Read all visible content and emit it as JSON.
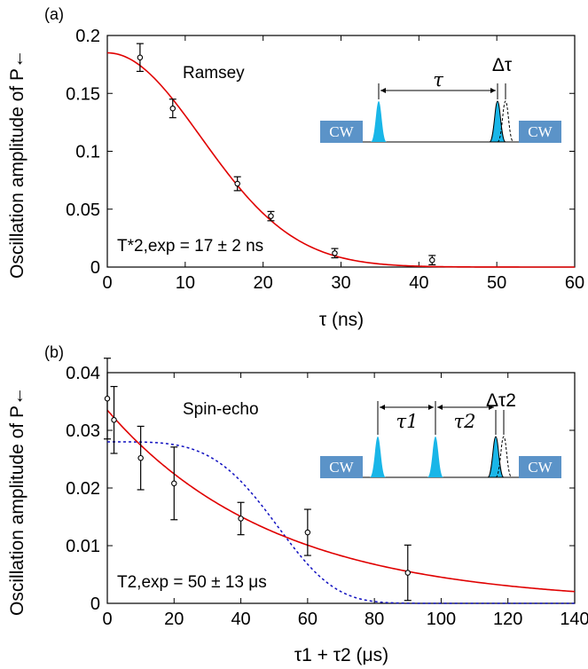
{
  "chart_data": [
    {
      "type": "scatter",
      "panel_label": "(a)",
      "annotation": "Ramsey",
      "fit_label": "T*2,exp = 17 ± 2 ns",
      "xlabel": "τ (ns)",
      "ylabel": "Oscillation amplitude of P←",
      "xlim": [
        0,
        60
      ],
      "ylim": [
        0,
        0.2
      ],
      "xticks": [
        0,
        10,
        20,
        30,
        40,
        50,
        60
      ],
      "yticks": [
        0,
        0.05,
        0.1,
        0.15,
        0.2
      ],
      "ytick_labels": [
        "0",
        "0.05",
        "0.1",
        "0.15",
        "0.2"
      ],
      "points": [
        {
          "x": 4.2,
          "y": 0.181,
          "err": 0.012
        },
        {
          "x": 8.4,
          "y": 0.137,
          "err": 0.008
        },
        {
          "x": 16.7,
          "y": 0.072,
          "err": 0.006
        },
        {
          "x": 21.0,
          "y": 0.044,
          "err": 0.004
        },
        {
          "x": 29.2,
          "y": 0.012,
          "err": 0.004
        },
        {
          "x": 41.7,
          "y": 0.006,
          "err": 0.004
        }
      ],
      "fit": {
        "amplitude": 0.185,
        "T": 17,
        "power": 2,
        "color": "#e00000"
      },
      "inset": {
        "cw_left": "CW",
        "cw_right": "CW",
        "gaps": [
          "τ"
        ],
        "delta": "Δτ",
        "colors": {
          "box": "#5b93c8",
          "pulse": "#19b6e8"
        }
      }
    },
    {
      "type": "scatter",
      "panel_label": "(b)",
      "annotation": "Spin-echo",
      "fit_label": "T2,exp = 50 ± 13 μs",
      "xlabel": "τ1 + τ2 (μs)",
      "ylabel": "Oscillation amplitude of P←",
      "xlim": [
        0,
        140
      ],
      "ylim": [
        0,
        0.04
      ],
      "xticks": [
        0,
        20,
        40,
        60,
        80,
        100,
        120,
        140
      ],
      "yticks": [
        0,
        0.01,
        0.02,
        0.03,
        0.04
      ],
      "ytick_labels": [
        "0",
        "0.01",
        "0.02",
        "0.03",
        "0.04"
      ],
      "points": [
        {
          "x": 0,
          "y": 0.0355,
          "err": 0.007
        },
        {
          "x": 2,
          "y": 0.0318,
          "err": 0.0058
        },
        {
          "x": 10,
          "y": 0.0252,
          "err": 0.0055
        },
        {
          "x": 20,
          "y": 0.0208,
          "err": 0.0063
        },
        {
          "x": 40,
          "y": 0.0147,
          "err": 0.0028
        },
        {
          "x": 60,
          "y": 0.0123,
          "err": 0.004
        },
        {
          "x": 90,
          "y": 0.0053,
          "err": 0.0048
        }
      ],
      "fit": {
        "amplitude": 0.0335,
        "T": 50,
        "power": 1,
        "color": "#e00000"
      },
      "fit2": {
        "amplitude": 0.028,
        "T": 55,
        "power": 4,
        "color": "#1010c0",
        "style": "dotted"
      },
      "inset": {
        "cw_left": "CW",
        "cw_right": "CW",
        "gaps": [
          "τ1",
          "τ2"
        ],
        "delta": "Δτ2",
        "colors": {
          "box": "#5b93c8",
          "pulse": "#19b6e8"
        }
      }
    }
  ]
}
